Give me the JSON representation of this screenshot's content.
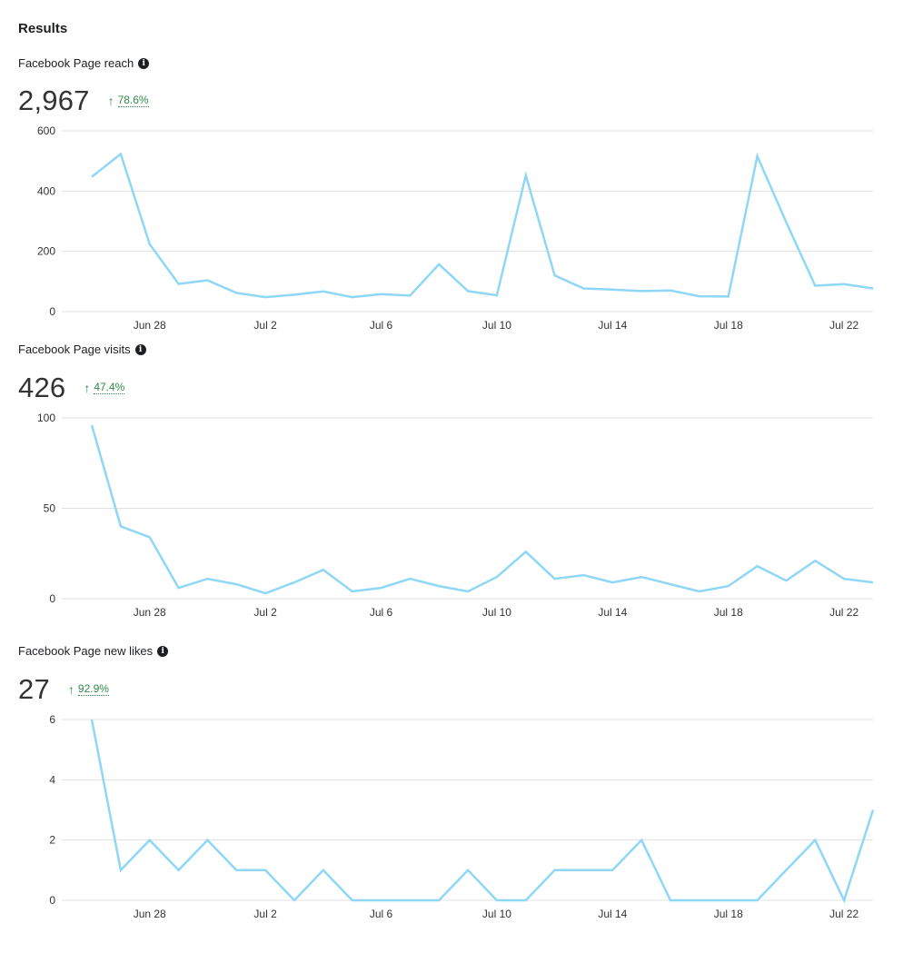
{
  "results_title": "Results",
  "colors": {
    "line": "#8ed7f6",
    "positive": "#2f8a47",
    "grid": "#e0e0e0"
  },
  "icons": {
    "info": "info-icon",
    "change": "arrow-up-icon"
  },
  "chart_data": [
    {
      "type": "line",
      "title": "Facebook Page reach",
      "total": "2,967",
      "change": "78.6%",
      "xlabels": [
        "Jun 28",
        "Jul 2",
        "Jul 6",
        "Jul 10",
        "Jul 14",
        "Jul 18",
        "Jul 22"
      ],
      "yticks": [
        0,
        200,
        400,
        600
      ],
      "ylim": [
        0,
        600
      ],
      "x": [
        "Jun 26",
        "Jun 27",
        "Jun 28",
        "Jun 29",
        "Jun 30",
        "Jul 1",
        "Jul 2",
        "Jul 3",
        "Jul 4",
        "Jul 5",
        "Jul 6",
        "Jul 7",
        "Jul 8",
        "Jul 9",
        "Jul 10",
        "Jul 11",
        "Jul 12",
        "Jul 13",
        "Jul 14",
        "Jul 15",
        "Jul 16",
        "Jul 17",
        "Jul 18",
        "Jul 19",
        "Jul 20",
        "Jul 21",
        "Jul 22",
        "Jul 23"
      ],
      "values": [
        447,
        523,
        224,
        92,
        104,
        62,
        48,
        56,
        67,
        48,
        58,
        53,
        157,
        68,
        54,
        452,
        120,
        77,
        73,
        68,
        70,
        51,
        50,
        516,
        297,
        86,
        91,
        77
      ],
      "grid": true,
      "legend": "none"
    },
    {
      "type": "line",
      "title": "Facebook Page visits",
      "total": "426",
      "change": "47.4%",
      "xlabels": [
        "Jun 28",
        "Jul 2",
        "Jul 6",
        "Jul 10",
        "Jul 14",
        "Jul 18",
        "Jul 22"
      ],
      "yticks": [
        0,
        50,
        100
      ],
      "ylim": [
        0,
        100
      ],
      "x": [
        "Jun 26",
        "Jun 27",
        "Jun 28",
        "Jun 29",
        "Jun 30",
        "Jul 1",
        "Jul 2",
        "Jul 3",
        "Jul 4",
        "Jul 5",
        "Jul 6",
        "Jul 7",
        "Jul 8",
        "Jul 9",
        "Jul 10",
        "Jul 11",
        "Jul 12",
        "Jul 13",
        "Jul 14",
        "Jul 15",
        "Jul 16",
        "Jul 17",
        "Jul 18",
        "Jul 19",
        "Jul 20",
        "Jul 21",
        "Jul 22",
        "Jul 23"
      ],
      "values": [
        96,
        40,
        34,
        6,
        11,
        8,
        3,
        9,
        16,
        4,
        6,
        11,
        7,
        4,
        12,
        26,
        11,
        13,
        9,
        12,
        8,
        4,
        7,
        18,
        10,
        21,
        11,
        9
      ],
      "grid": true,
      "legend": "none"
    },
    {
      "type": "line",
      "title": "Facebook Page new likes",
      "total": "27",
      "change": "92.9%",
      "xlabels": [
        "Jun 28",
        "Jul 2",
        "Jul 6",
        "Jul 10",
        "Jul 14",
        "Jul 18",
        "Jul 22"
      ],
      "yticks": [
        0,
        2,
        4,
        6
      ],
      "ylim": [
        0,
        6
      ],
      "x": [
        "Jun 26",
        "Jun 27",
        "Jun 28",
        "Jun 29",
        "Jun 30",
        "Jul 1",
        "Jul 2",
        "Jul 3",
        "Jul 4",
        "Jul 5",
        "Jul 6",
        "Jul 7",
        "Jul 8",
        "Jul 9",
        "Jul 10",
        "Jul 11",
        "Jul 12",
        "Jul 13",
        "Jul 14",
        "Jul 15",
        "Jul 16",
        "Jul 17",
        "Jul 18",
        "Jul 19",
        "Jul 20",
        "Jul 21",
        "Jul 22",
        "Jul 23"
      ],
      "values": [
        6,
        1,
        2,
        1,
        2,
        1,
        1,
        0,
        1,
        0,
        0,
        0,
        0,
        1,
        0,
        0,
        1,
        1,
        1,
        2,
        0,
        0,
        0,
        0,
        1,
        2,
        0,
        3
      ],
      "grid": true,
      "legend": "none"
    }
  ]
}
